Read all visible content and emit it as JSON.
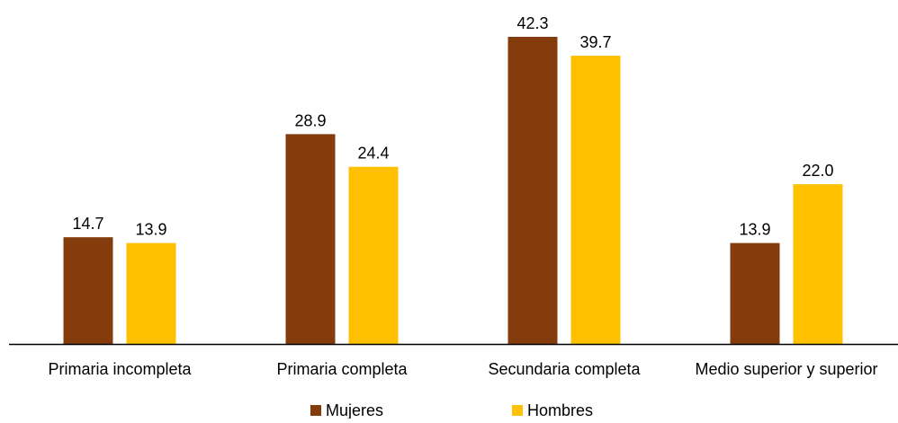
{
  "chart_data": {
    "type": "bar",
    "categories": [
      "Primaria incompleta",
      "Primaria completa",
      "Secundaria completa",
      "Medio superior y superior"
    ],
    "series": [
      {
        "name": "Mujeres",
        "values": [
          14.7,
          28.9,
          42.3,
          13.9
        ],
        "color": "#843C0C"
      },
      {
        "name": "Hombres",
        "values": [
          13.9,
          24.4,
          39.7,
          22.0
        ],
        "color": "#FFC000"
      }
    ],
    "value_labels": {
      "Mujeres": [
        "14.7",
        "28.9",
        "42.3",
        "13.9"
      ],
      "Hombres": [
        "13.9",
        "24.4",
        "39.7",
        "22.0"
      ]
    },
    "ylim": [
      0,
      42.3
    ],
    "grid": false,
    "legend_position": "bottom",
    "axis_color": "#000000"
  }
}
